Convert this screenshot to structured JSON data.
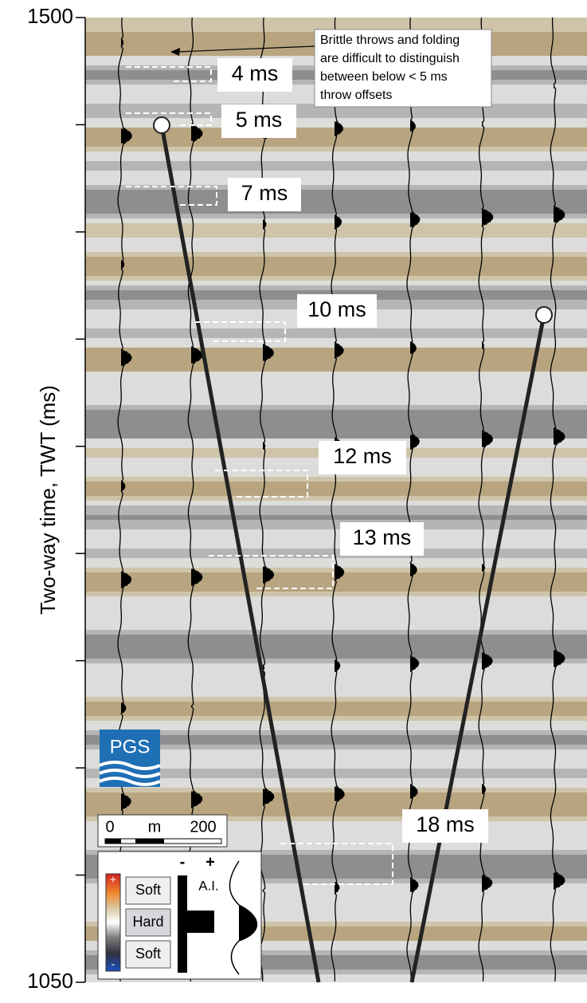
{
  "axis": {
    "label": "Two-way time, TWT (ms)",
    "ylim": [
      1050,
      1500
    ],
    "yticks": [
      1050,
      {
        "value": 1100,
        "label": null
      },
      {
        "value": 1150,
        "label": null
      },
      {
        "value": 1200,
        "label": null
      },
      {
        "value": 1250,
        "label": null
      },
      {
        "value": 1300,
        "label": null
      },
      {
        "value": 1350,
        "label": null
      },
      {
        "value": 1400,
        "label": null
      },
      {
        "value": 1450,
        "label": null
      },
      1500
    ]
  },
  "annotations": {
    "note": [
      "Brittle throws and folding",
      "are difficult to distinguish",
      "between below < 5 ms",
      "throw offsets"
    ],
    "throws": [
      "4 ms",
      "5 ms",
      "7 ms",
      "10 ms",
      "12 ms",
      "13 ms",
      "18 ms"
    ]
  },
  "logo": "PGS",
  "scale_bar": {
    "start": "0",
    "unit": "m",
    "end": "200"
  },
  "legend": {
    "colorbar": {
      "top": "+",
      "bottom": "-"
    },
    "labels": [
      "Soft",
      "Hard",
      "Soft"
    ],
    "polarity": {
      "minus": "-",
      "plus": "+"
    },
    "quantity": "A.I."
  }
}
